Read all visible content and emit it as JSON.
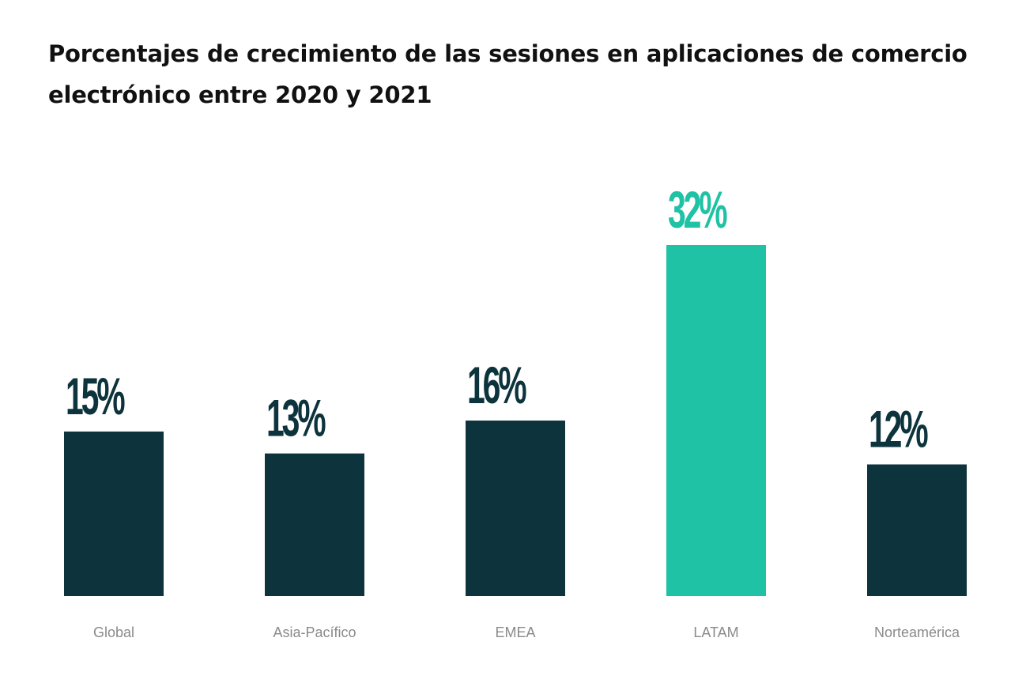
{
  "title": "Porcentajes de crecimiento de las sesiones en aplicaciones de comercio electrónico entre 2020 y 2021",
  "colors": {
    "bar_default": "#0d333c",
    "bar_highlight": "#1fc2a4",
    "label_default": "#0d333c",
    "label_highlight": "#1fc2a4",
    "category_text": "#8a8a8a"
  },
  "chart_data": {
    "type": "bar",
    "title": "Porcentajes de crecimiento de las sesiones en aplicaciones de comercio electrónico entre 2020 y 2021",
    "categories": [
      "Global",
      "Asia-Pacífico",
      "EMEA",
      "LATAM",
      "Norteamérica"
    ],
    "values": [
      15,
      13,
      16,
      32,
      12
    ],
    "value_labels": [
      "15%",
      "13%",
      "16%",
      "32%",
      "12%"
    ],
    "highlight": [
      false,
      false,
      false,
      true,
      false
    ],
    "xlabel": "",
    "ylabel": "",
    "unit": "%",
    "ylim": [
      0,
      32
    ],
    "grid": false,
    "legend": "none",
    "axes_visible": false
  }
}
